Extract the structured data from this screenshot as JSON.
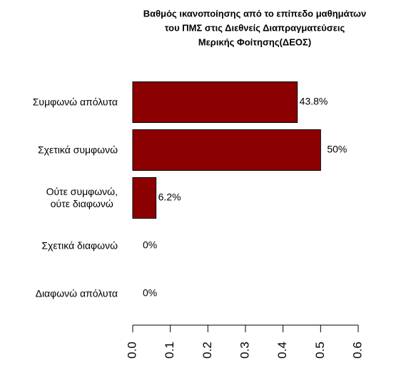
{
  "chart_data": {
    "type": "barh",
    "title": [
      "Βαθμός ικανοποίησης από το επίπεδο μαθημάτων",
      "του ΠΜΣ στις Διεθνείς Διαπραγματεύσεις",
      "Μερικής Φοίτησης(ΔΕΟΣ)"
    ],
    "categories": [
      "Συμφωνώ απόλυτα",
      "Σχετικά συμφωνώ",
      "Ούτε συμφωνώ,\nούτε διαφωνώ",
      "Σχετικά διαφωνώ",
      "Διαφωνώ απόλυτα"
    ],
    "values": [
      0.438,
      0.5,
      0.062,
      0,
      0
    ],
    "value_labels": [
      "43.8%",
      "50%",
      "6.2%",
      "0%",
      "0%"
    ],
    "color": "#8b0000",
    "xlim": [
      0,
      0.6
    ],
    "xticks": [
      {
        "value": 0,
        "label": "0.0"
      },
      0.1,
      0.2,
      0.3,
      0.4,
      0.5,
      0.6
    ]
  }
}
